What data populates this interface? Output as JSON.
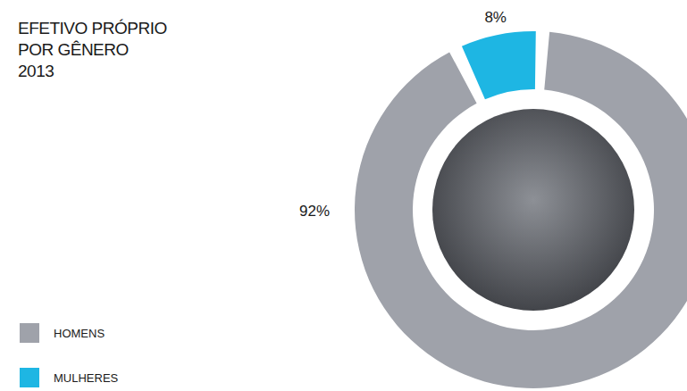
{
  "chart_data": {
    "type": "pie",
    "title": "EFETIVO PRÓPRIO POR GÊNERO",
    "subtitle": "2013",
    "categories": [
      "HOMENS",
      "MULHERES"
    ],
    "values": [
      92,
      8
    ],
    "value_labels": [
      "92%",
      "8%"
    ],
    "colors": [
      "#9fa2aa",
      "#1eb6e3"
    ],
    "data_labels": true,
    "legend": "bottom-left"
  }
}
